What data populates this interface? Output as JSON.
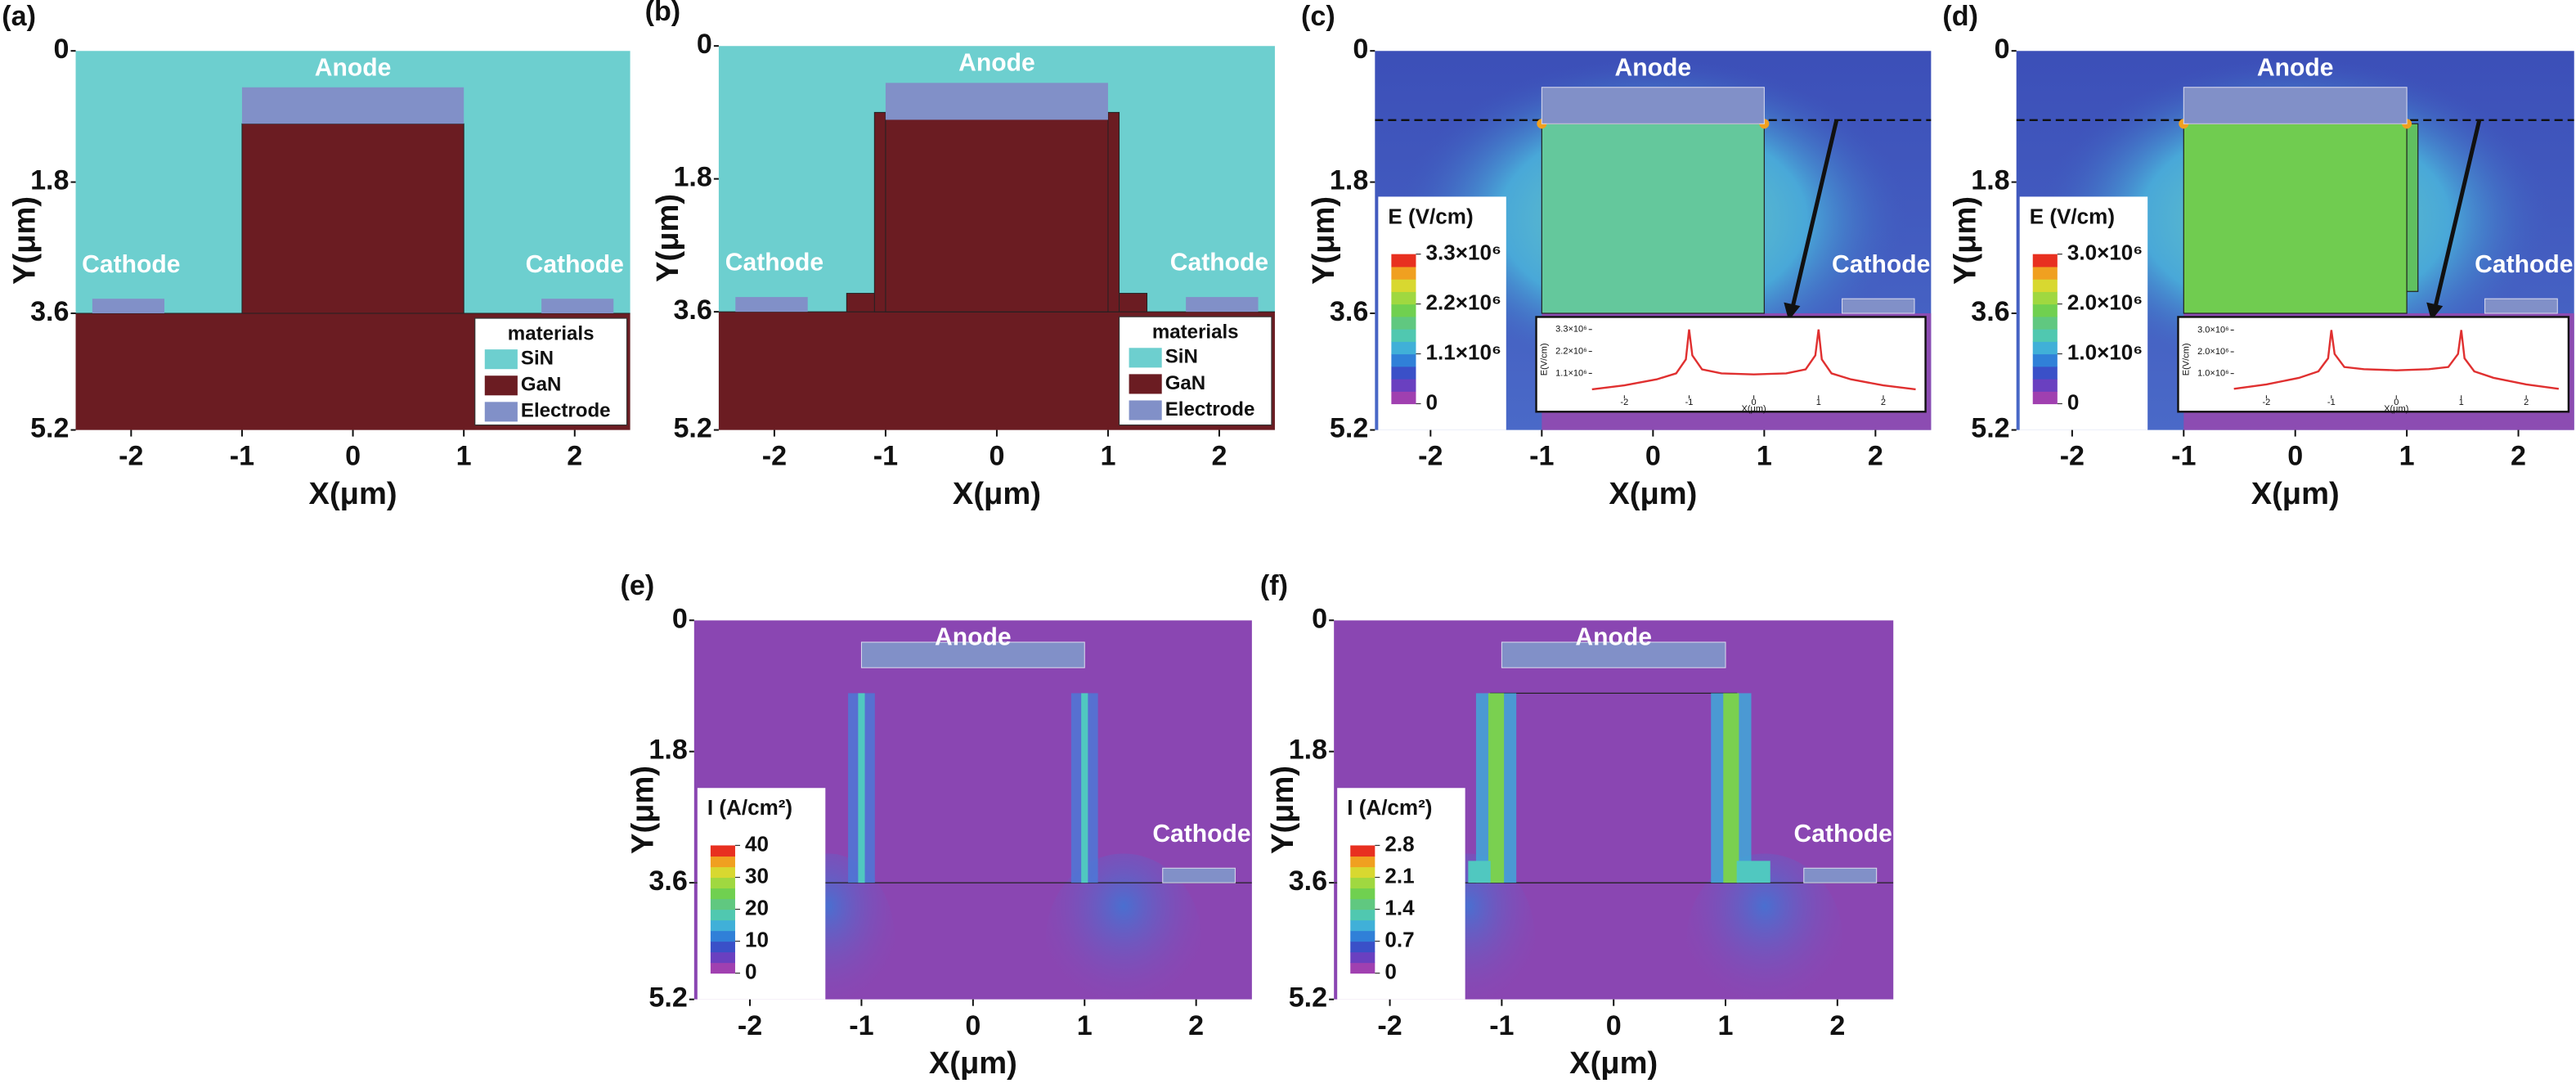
{
  "chart_data": [
    {
      "type": "structure",
      "panel": "(a)",
      "xlabel": "X(μm)",
      "ylabel": "Y(μm)",
      "xlim": [
        -2.5,
        2.5
      ],
      "ylim": [
        0,
        5.2
      ],
      "xticks": [
        -2,
        -1,
        0,
        1,
        2
      ],
      "yticks": [
        0,
        1.8,
        3.6,
        5.2
      ],
      "anode": "Anode",
      "cathodes": [
        "Cathode",
        "Cathode"
      ],
      "legend": {
        "title": "materials",
        "items": [
          {
            "name": "SiN",
            "color": "#6dcfcf"
          },
          {
            "name": "GaN",
            "color": "#6b1c22"
          },
          {
            "name": "Electrode",
            "color": "#8190c8"
          }
        ]
      }
    },
    {
      "type": "structure",
      "panel": "(b)",
      "xlabel": "X(μm)",
      "ylabel": "Y(μm)",
      "xlim": [
        -2.5,
        2.5
      ],
      "ylim": [
        0,
        5.2
      ],
      "xticks": [
        -2,
        -1,
        0,
        1,
        2
      ],
      "yticks": [
        0,
        1.8,
        3.6,
        5.2
      ],
      "anode": "Anode",
      "cathodes": [
        "Cathode",
        "Cathode"
      ],
      "legend": {
        "title": "materials",
        "items": [
          {
            "name": "SiN",
            "color": "#6dcfcf"
          },
          {
            "name": "GaN",
            "color": "#6b1c22"
          },
          {
            "name": "Electrode",
            "color": "#8190c8"
          }
        ]
      }
    },
    {
      "type": "field",
      "panel": "(c)",
      "xlabel": "X(μm)",
      "ylabel": "Y(μm)",
      "xlim": [
        -2.5,
        2.5
      ],
      "ylim": [
        0,
        5.2
      ],
      "xticks": [
        -2,
        -1,
        0,
        1,
        2
      ],
      "yticks": [
        0,
        1.8,
        3.6,
        5.2
      ],
      "anode": "Anode",
      "cathodes": [
        "Cathode"
      ],
      "colorbar": {
        "title": "E (V/cm)",
        "clim": [
          0,
          3300000
        ],
        "ticks": [
          {
            "value": 3300000,
            "label": "3.3×10⁶"
          },
          {
            "value": 2200000,
            "label": "2.2×10⁶"
          },
          {
            "value": 1100000,
            "label": "1.1×10⁶"
          },
          0
        ]
      },
      "inset": {
        "xlabel": "X(μm)",
        "ylabel": "E(V/cm)",
        "xlim": [
          -2.5,
          2.5
        ],
        "ylim": [
          0,
          3600000
        ],
        "xticks": [
          -2,
          -1,
          0,
          1,
          2
        ],
        "yticks": [
          {
            "value": 1100000,
            "label": "1.1×10⁶"
          },
          {
            "value": 2200000,
            "label": "2.2×10⁶"
          },
          {
            "value": 3300000,
            "label": "3.3×10⁶"
          }
        ],
        "series": [
          {
            "color": "#e03030",
            "x": [
              -2.5,
              -2,
              -1.5,
              -1.2,
              -1.05,
              -1,
              -0.95,
              -0.8,
              -0.5,
              0,
              0.5,
              0.8,
              0.95,
              1,
              1.05,
              1.2,
              1.5,
              2,
              2.5
            ],
            "values": [
              300000,
              500000,
              800000,
              1100000,
              1800000,
              3300000,
              2000000,
              1300000,
              1100000,
              1050000,
              1100000,
              1300000,
              2000000,
              3300000,
              1800000,
              1100000,
              800000,
              500000,
              300000
            ]
          }
        ]
      }
    },
    {
      "type": "field",
      "panel": "(d)",
      "xlabel": "X(μm)",
      "ylabel": "Y(μm)",
      "xlim": [
        -2.5,
        2.5
      ],
      "ylim": [
        0,
        5.2
      ],
      "xticks": [
        -2,
        -1,
        0,
        1,
        2
      ],
      "yticks": [
        0,
        1.8,
        3.6,
        5.2
      ],
      "anode": "Anode",
      "cathodes": [
        "Cathode"
      ],
      "colorbar": {
        "title": "E (V/cm)",
        "clim": [
          0,
          3000000
        ],
        "ticks": [
          {
            "value": 3000000,
            "label": "3.0×10⁶"
          },
          {
            "value": 2000000,
            "label": "2.0×10⁶"
          },
          {
            "value": 1000000,
            "label": "1.0×10⁶"
          },
          0
        ]
      },
      "inset": {
        "xlabel": "X(μm)",
        "ylabel": "E(V/cm)",
        "xlim": [
          -2.5,
          2.5
        ],
        "ylim": [
          0,
          3300000
        ],
        "xticks": [
          -2,
          -1,
          0,
          1,
          2
        ],
        "yticks": [
          {
            "value": 1000000,
            "label": "1.0×10⁶"
          },
          {
            "value": 2000000,
            "label": "2.0×10⁶"
          },
          {
            "value": 3000000,
            "label": "3.0×10⁶"
          }
        ],
        "series": [
          {
            "color": "#e03030",
            "x": [
              -2.5,
              -2,
              -1.5,
              -1.2,
              -1.05,
              -1,
              -0.95,
              -0.8,
              -0.5,
              0,
              0.5,
              0.8,
              0.95,
              1,
              1.05,
              1.2,
              1.5,
              2,
              2.5
            ],
            "values": [
              300000,
              500000,
              800000,
              1100000,
              1700000,
              3000000,
              1900000,
              1300000,
              1200000,
              1150000,
              1200000,
              1300000,
              1900000,
              3000000,
              1700000,
              1100000,
              800000,
              500000,
              300000
            ]
          }
        ]
      }
    },
    {
      "type": "current",
      "panel": "(e)",
      "xlabel": "X(μm)",
      "ylabel": "Y(μm)",
      "xlim": [
        -2.5,
        2.5
      ],
      "ylim": [
        0,
        5.2
      ],
      "xticks": [
        -2,
        -1,
        0,
        1,
        2
      ],
      "yticks": [
        0,
        1.8,
        3.6,
        5.2
      ],
      "anode": "Anode",
      "cathodes": [
        "Cathode"
      ],
      "colorbar": {
        "title": "I (A/cm²)",
        "clim": [
          0,
          40
        ],
        "ticks": [
          40,
          30,
          20,
          10,
          0
        ]
      }
    },
    {
      "type": "current",
      "panel": "(f)",
      "xlabel": "X(μm)",
      "ylabel": "Y(μm)",
      "xlim": [
        -2.5,
        2.5
      ],
      "ylim": [
        0,
        5.2
      ],
      "xticks": [
        -2,
        -1,
        0,
        1,
        2
      ],
      "yticks": [
        0,
        1.8,
        3.6,
        5.2
      ],
      "anode": "Anode",
      "cathodes": [
        "Cathode"
      ],
      "colorbar": {
        "title": "I (A/cm²)",
        "clim": [
          0,
          2.8
        ],
        "ticks": [
          2.8,
          2.1,
          1.4,
          0.7,
          0
        ]
      }
    }
  ]
}
